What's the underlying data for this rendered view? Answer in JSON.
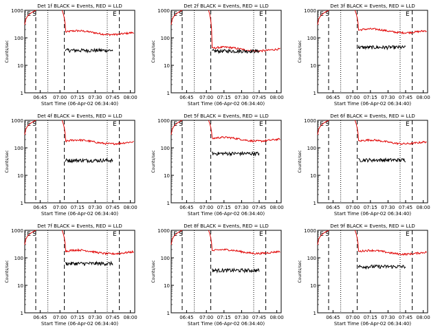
{
  "layout": {
    "rows": 3,
    "cols": 3
  },
  "colors": {
    "events": "#000000",
    "lld": "#e00000",
    "axis": "#000000",
    "background": "#ffffff"
  },
  "chart_data": [
    {
      "type": "line",
      "title": "Det 1f BLACK = Events, RED = LLD",
      "xlabel": "Start Time (06-Apr-02 06:34:40)",
      "ylabel": "Counts/sec",
      "yscale": "log",
      "ylim": [
        1,
        1000
      ],
      "yticks": [
        "1",
        "10",
        "100",
        "1000"
      ],
      "xticks": [
        "06:45",
        "07:00",
        "07:15",
        "07:30",
        "07:45",
        "08:00"
      ],
      "markers": [
        "E",
        "S",
        "E"
      ],
      "series": [
        {
          "name": "LLD",
          "level": 150
        },
        {
          "name": "Events",
          "level": 35
        }
      ]
    },
    {
      "type": "line",
      "title": "Det 2f BLACK = Events, RED = LLD",
      "xlabel": "Start Time (06-Apr-02 06:34:40)",
      "ylabel": "Counts/sec",
      "yscale": "log",
      "ylim": [
        1,
        1000
      ],
      "yticks": [
        "1",
        "10",
        "100",
        "1000"
      ],
      "xticks": [
        "06:45",
        "07:00",
        "07:15",
        "07:30",
        "07:45",
        "08:00"
      ],
      "markers": [
        "E",
        "S",
        "E"
      ],
      "series": [
        {
          "name": "LLD",
          "level": 38
        },
        {
          "name": "Events",
          "level": 33
        }
      ]
    },
    {
      "type": "line",
      "title": "Det 3f BLACK = Events, RED = LLD",
      "xlabel": "Start Time (06-Apr-02 06:34:40)",
      "ylabel": "Counts/sec",
      "yscale": "log",
      "ylim": [
        1,
        1000
      ],
      "yticks": [
        "1",
        "10",
        "100",
        "1000"
      ],
      "xticks": [
        "06:45",
        "07:00",
        "07:15",
        "07:30",
        "07:45",
        "08:00"
      ],
      "markers": [
        "E",
        "S",
        "E"
      ],
      "series": [
        {
          "name": "LLD",
          "level": 175
        },
        {
          "name": "Events",
          "level": 45
        }
      ]
    },
    {
      "type": "line",
      "title": "Det 4f BLACK = Events, RED = LLD",
      "xlabel": "Start Time (06-Apr-02 06:34:40)",
      "ylabel": "Counts/sec",
      "yscale": "log",
      "ylim": [
        1,
        1000
      ],
      "yticks": [
        "1",
        "10",
        "100",
        "1000"
      ],
      "xticks": [
        "06:45",
        "07:00",
        "07:15",
        "07:30",
        "07:45",
        "08:00"
      ],
      "markers": [
        "E",
        "S",
        "E"
      ],
      "series": [
        {
          "name": "LLD",
          "level": 160
        },
        {
          "name": "Events",
          "level": 35
        }
      ]
    },
    {
      "type": "line",
      "title": "Det 5f BLACK = Events, RED = LLD",
      "xlabel": "Start Time (06-Apr-02 06:34:40)",
      "ylabel": "Counts/sec",
      "yscale": "log",
      "ylim": [
        1,
        1000
      ],
      "yticks": [
        "1",
        "10",
        "100",
        "1000"
      ],
      "xticks": [
        "06:45",
        "07:00",
        "07:15",
        "07:30",
        "07:45",
        "08:00"
      ],
      "markers": [
        "E",
        "S",
        "E"
      ],
      "series": [
        {
          "name": "LLD",
          "level": 200
        },
        {
          "name": "Events",
          "level": 62
        }
      ]
    },
    {
      "type": "line",
      "title": "Det 6f BLACK = Events, RED = LLD",
      "xlabel": "Start Time (06-Apr-02 06:34:40)",
      "ylabel": "Counts/sec",
      "yscale": "log",
      "ylim": [
        1,
        1000
      ],
      "yticks": [
        "1",
        "10",
        "100",
        "1000"
      ],
      "xticks": [
        "06:45",
        "07:00",
        "07:15",
        "07:30",
        "07:45",
        "08:00"
      ],
      "markers": [
        "E",
        "S",
        "E"
      ],
      "series": [
        {
          "name": "LLD",
          "level": 160
        },
        {
          "name": "Events",
          "level": 36
        }
      ]
    },
    {
      "type": "line",
      "title": "Det 7f BLACK = Events, RED = LLD",
      "xlabel": "Start Time (06-Apr-02 06:34:40)",
      "ylabel": "Counts/sec",
      "yscale": "log",
      "ylim": [
        1,
        1000
      ],
      "yticks": [
        "1",
        "10",
        "100",
        "1000"
      ],
      "xticks": [
        "06:45",
        "07:00",
        "07:15",
        "07:30",
        "07:45",
        "08:00"
      ],
      "markers": [
        "E",
        "S",
        "E"
      ],
      "series": [
        {
          "name": "LLD",
          "level": 160
        },
        {
          "name": "Events",
          "level": 62
        }
      ]
    },
    {
      "type": "line",
      "title": "Det 8f BLACK = Events, RED = LLD",
      "xlabel": "Start Time (06-Apr-02 06:34:40)",
      "ylabel": "Counts/sec",
      "yscale": "log",
      "ylim": [
        1,
        1000
      ],
      "yticks": [
        "1",
        "10",
        "100",
        "1000"
      ],
      "xticks": [
        "06:45",
        "07:00",
        "07:15",
        "07:30",
        "07:45",
        "08:00"
      ],
      "markers": [
        "E",
        "S",
        "E"
      ],
      "series": [
        {
          "name": "LLD",
          "level": 165
        },
        {
          "name": "Events",
          "level": 35
        }
      ]
    },
    {
      "type": "line",
      "title": "Det 9f BLACK = Events, RED = LLD",
      "xlabel": "Start Time (06-Apr-02 06:34:40)",
      "ylabel": "Counts/sec",
      "yscale": "log",
      "ylim": [
        1,
        1000
      ],
      "yticks": [
        "1",
        "10",
        "100",
        "1000"
      ],
      "xticks": [
        "06:45",
        "07:00",
        "07:15",
        "07:30",
        "07:45",
        "08:00"
      ],
      "markers": [
        "E",
        "S",
        "E"
      ],
      "series": [
        {
          "name": "LLD",
          "level": 155
        },
        {
          "name": "Events",
          "level": 48
        }
      ]
    }
  ]
}
